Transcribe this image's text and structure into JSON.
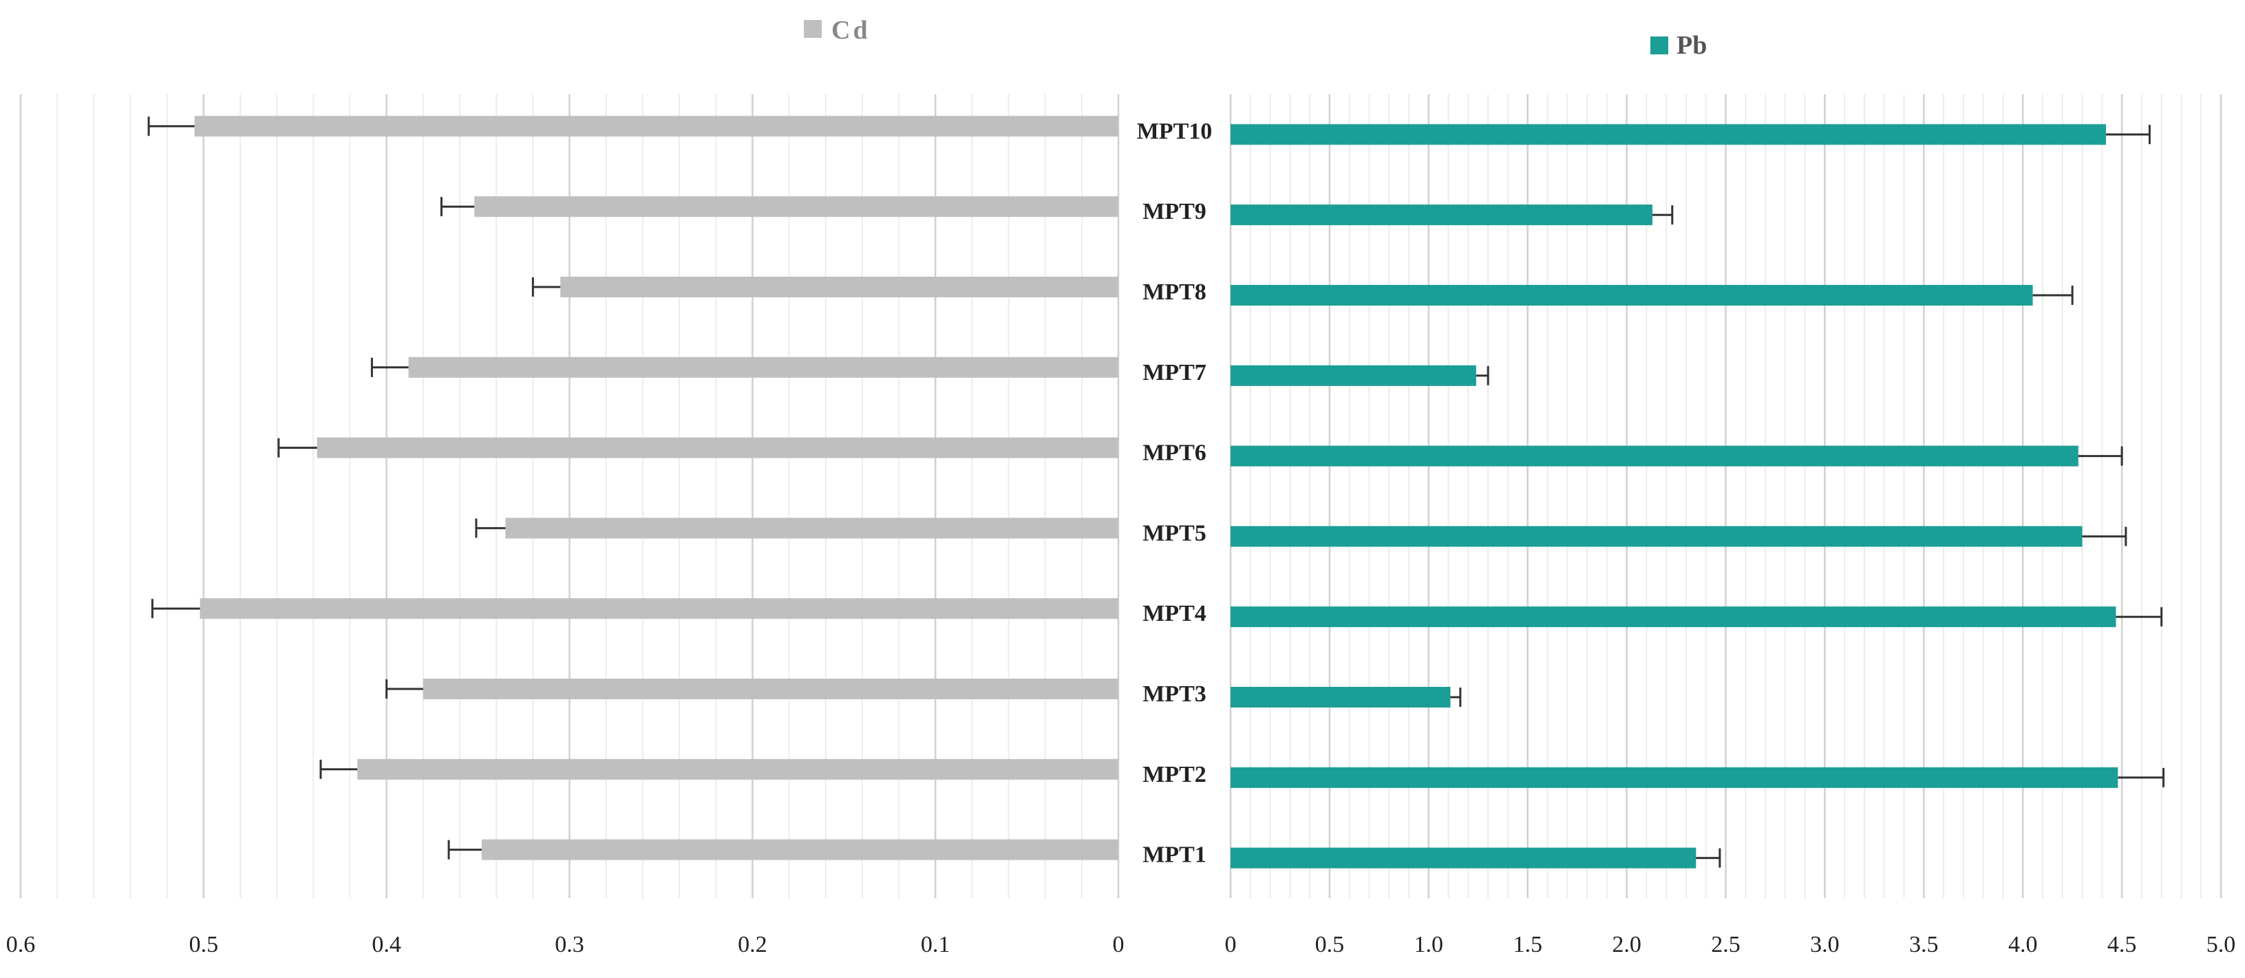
{
  "chart_data": {
    "type": "bar",
    "orientation": "horizontal-back-to-back",
    "categories": [
      "MPT10",
      "MPT9",
      "MPT8",
      "MPT7",
      "MPT6",
      "MPT5",
      "MPT4",
      "MPT3",
      "MPT2",
      "MPT1"
    ],
    "legend_placement": "top",
    "grid": true,
    "panels": [
      {
        "series": [
          {
            "name": "Cd",
            "color": "#bfbfbf",
            "values": [
              0.505,
              0.352,
              0.305,
              0.388,
              0.438,
              0.335,
              0.502,
              0.38,
              0.416,
              0.348
            ],
            "error": [
              0.025,
              0.018,
              0.015,
              0.02,
              0.021,
              0.016,
              0.026,
              0.02,
              0.02,
              0.018
            ]
          }
        ],
        "xlim": [
          0,
          0.6
        ],
        "direction": "reversed",
        "ticks": [
          "0.6",
          "0.5",
          "0.4",
          "0.3",
          "0.2",
          "0.1",
          "0"
        ]
      },
      {
        "series": [
          {
            "name": "Pb",
            "color": "#1b9e96",
            "values": [
              4.42,
              2.13,
              4.05,
              1.24,
              4.28,
              4.3,
              4.47,
              1.11,
              4.48,
              2.35
            ],
            "error": [
              0.22,
              0.1,
              0.2,
              0.06,
              0.22,
              0.22,
              0.23,
              0.05,
              0.23,
              0.12
            ]
          }
        ],
        "xlim": [
          0,
          5
        ],
        "direction": "normal",
        "ticks": [
          "0",
          "0.5",
          "1.0",
          "1.5",
          "2.0",
          "2.5",
          "3.0",
          "3.5",
          "4.0",
          "4.5",
          "5.0"
        ]
      }
    ]
  }
}
